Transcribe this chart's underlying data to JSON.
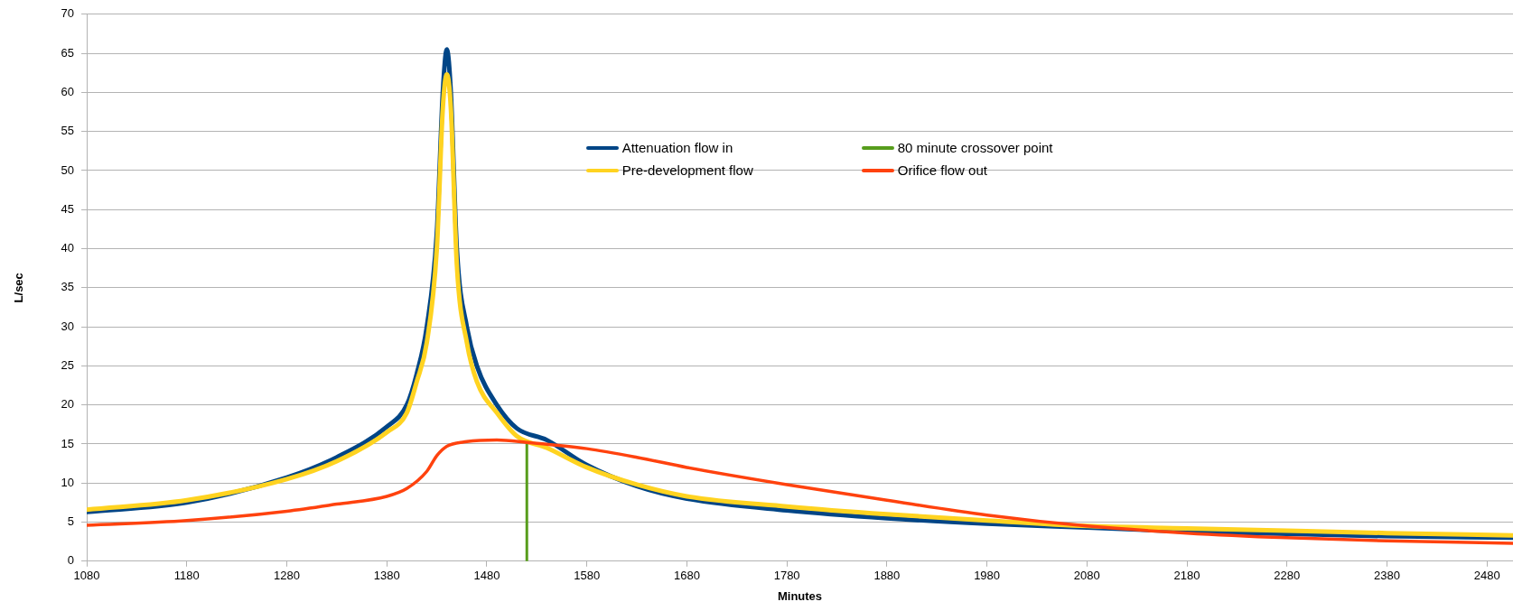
{
  "chart_data": {
    "type": "line",
    "xlabel": "Minutes",
    "ylabel": "L/sec",
    "xlim": [
      1080,
      2506
    ],
    "xticks": [
      1080,
      1180,
      1280,
      1380,
      1480,
      1580,
      1680,
      1780,
      1880,
      1980,
      2080,
      2180,
      2280,
      2380,
      2480
    ],
    "ylim": [
      0,
      70
    ],
    "yticks": [
      0,
      5,
      10,
      15,
      20,
      25,
      30,
      35,
      40,
      45,
      50,
      55,
      60,
      65,
      70
    ],
    "grid": "y",
    "legend": "top",
    "marker": "none",
    "line_style": "solid",
    "series": [
      {
        "name": "Attenuation flow in",
        "color": "#004586",
        "x": [
          1080,
          1180,
          1280,
          1330,
          1380,
          1400,
          1410,
          1420,
          1430,
          1436,
          1440,
          1444,
          1450,
          1460,
          1470,
          1490,
          1510,
          1540,
          1580,
          1630,
          1680,
          1780,
          1880,
          1980,
          2080,
          2180,
          2280,
          2380,
          2506
        ],
        "values": [
          6.3,
          7.5,
          10.7,
          13.3,
          17.2,
          20,
          24,
          30,
          42,
          60,
          65.5,
          60,
          40,
          30,
          25,
          20,
          17,
          15.5,
          12.3,
          9.6,
          8,
          6.5,
          5.5,
          4.8,
          4.3,
          3.8,
          3.5,
          3.2,
          3.0
        ]
      },
      {
        "name": "Pre-development flow",
        "color": "#ffd320",
        "x": [
          1080,
          1180,
          1280,
          1330,
          1380,
          1400,
          1410,
          1420,
          1430,
          1436,
          1440,
          1444,
          1450,
          1460,
          1470,
          1490,
          1510,
          1540,
          1580,
          1630,
          1680,
          1780,
          1880,
          1980,
          2080,
          2180,
          2280,
          2380,
          2506
        ],
        "values": [
          6.6,
          7.8,
          10.5,
          12.8,
          16.5,
          19,
          23,
          28,
          40,
          58,
          62.3,
          58,
          38,
          28,
          23,
          19,
          16,
          14.5,
          12,
          9.8,
          8.3,
          7,
          6,
          5.2,
          4.5,
          4.2,
          3.9,
          3.6,
          3.3
        ]
      },
      {
        "name": "80 minute crossover point",
        "color": "#579d1c",
        "x": [
          1520,
          1520
        ],
        "values": [
          0,
          15.2
        ]
      },
      {
        "name": "Orifice flow out",
        "color": "#ff420e",
        "x": [
          1080,
          1180,
          1280,
          1330,
          1380,
          1400,
          1420,
          1430,
          1440,
          1460,
          1490,
          1520,
          1580,
          1630,
          1680,
          1780,
          1880,
          1980,
          2080,
          2180,
          2280,
          2380,
          2506
        ],
        "values": [
          4.6,
          5.2,
          6.4,
          7.3,
          8.3,
          9.3,
          11.5,
          13.5,
          14.7,
          15.3,
          15.5,
          15.2,
          14.4,
          13.3,
          12,
          9.8,
          7.8,
          5.9,
          4.5,
          3.6,
          3.0,
          2.6,
          2.3
        ]
      }
    ]
  }
}
